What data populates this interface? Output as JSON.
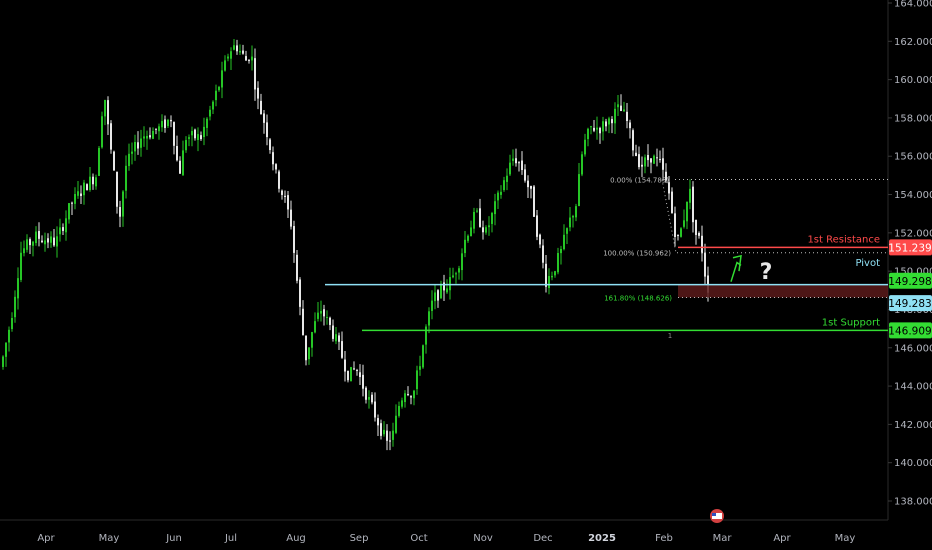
{
  "chart_data": {
    "type": "candlestick",
    "y_axis": {
      "position": "right",
      "range": [
        137,
        164.5
      ],
      "ticks": [
        "138.000",
        "140.000",
        "142.000",
        "144.000",
        "146.000",
        "148.000",
        "150.000",
        "152.000",
        "154.000",
        "156.000",
        "158.000",
        "160.000",
        "162.000",
        "164.000"
      ]
    },
    "x_axis": {
      "ticks": [
        "Apr",
        "May",
        "Jun",
        "Jul",
        "Aug",
        "Sep",
        "Oct",
        "Nov",
        "Dec",
        "2025",
        "Feb",
        "Mar",
        "Apr",
        "May"
      ],
      "bold_tick": "2025"
    },
    "colors": {
      "bull": "#26c626",
      "bear": "#e8e8e8",
      "resistance": "#ff4a4a",
      "pivot": "#8fe1f5",
      "support": "#33dd33",
      "zone": "#5a1a1a",
      "fib_dotted": "#bdbdbd",
      "arrow": "#33dd33",
      "question": "#e8e8e8",
      "axis_text": "#b2b5be"
    },
    "levels": [
      {
        "name": "1st Resistance",
        "value": 151.239,
        "label": "151.239"
      },
      {
        "name": "Pivot",
        "value": 149.298,
        "label": "149.298"
      },
      {
        "name": "",
        "value": 149.283,
        "label": "149.283"
      },
      {
        "name": "1st Support",
        "value": 146.909,
        "label": "146.909"
      }
    ],
    "fib_levels": [
      {
        "label": "0.00% (154.785)",
        "value": 154.785
      },
      {
        "label": "100.00% (150.962)",
        "value": 150.962
      },
      {
        "label": "161.80% (148.626)",
        "value": 148.626
      }
    ],
    "annotations": {
      "question_mark": "?",
      "arrow": "up-arrow",
      "marker_near_support": "1",
      "earnings_icon": "flag-icon"
    },
    "series_path": [
      [
        0,
        145.0
      ],
      [
        10,
        147.5
      ],
      [
        20,
        151.0
      ],
      [
        35,
        151.8
      ],
      [
        55,
        151.5
      ],
      [
        70,
        153.5
      ],
      [
        85,
        154.5
      ],
      [
        95,
        155.0
      ],
      [
        103,
        159.5
      ],
      [
        108,
        157.0
      ],
      [
        112,
        155.5
      ],
      [
        118,
        152.5
      ],
      [
        125,
        155.5
      ],
      [
        140,
        157.0
      ],
      [
        160,
        157.5
      ],
      [
        170,
        158.0
      ],
      [
        178,
        155.0
      ],
      [
        185,
        157.0
      ],
      [
        200,
        157.0
      ],
      [
        210,
        158.5
      ],
      [
        220,
        160.0
      ],
      [
        228,
        161.5
      ],
      [
        235,
        161.8
      ],
      [
        245,
        161.0
      ],
      [
        250,
        161.5
      ],
      [
        256,
        159.0
      ],
      [
        265,
        157.5
      ],
      [
        275,
        155.0
      ],
      [
        285,
        153.5
      ],
      [
        290,
        152.5
      ],
      [
        295,
        150.0
      ],
      [
        300,
        147.5
      ],
      [
        305,
        145.5
      ],
      [
        312,
        147.0
      ],
      [
        320,
        148.0
      ],
      [
        330,
        147.0
      ],
      [
        338,
        146.0
      ],
      [
        348,
        144.5
      ],
      [
        355,
        145.0
      ],
      [
        362,
        144.0
      ],
      [
        370,
        143.0
      ],
      [
        378,
        142.0
      ],
      [
        386,
        141.0
      ],
      [
        392,
        141.5
      ],
      [
        398,
        143.0
      ],
      [
        405,
        144.0
      ],
      [
        412,
        143.5
      ],
      [
        418,
        145.0
      ],
      [
        425,
        147.0
      ],
      [
        432,
        148.5
      ],
      [
        440,
        149.0
      ],
      [
        450,
        149.5
      ],
      [
        458,
        150.5
      ],
      [
        466,
        152.0
      ],
      [
        475,
        153.0
      ],
      [
        485,
        152.0
      ],
      [
        495,
        153.5
      ],
      [
        505,
        155.0
      ],
      [
        513,
        156.0
      ],
      [
        520,
        155.5
      ],
      [
        530,
        154.0
      ],
      [
        538,
        151.5
      ],
      [
        545,
        149.5
      ],
      [
        552,
        150.0
      ],
      [
        560,
        151.0
      ],
      [
        568,
        152.5
      ],
      [
        575,
        153.5
      ],
      [
        582,
        156.5
      ],
      [
        590,
        157.5
      ],
      [
        600,
        157.5
      ],
      [
        610,
        158.0
      ],
      [
        618,
        158.5
      ],
      [
        625,
        158.0
      ],
      [
        632,
        156.5
      ],
      [
        640,
        155.5
      ],
      [
        650,
        156.0
      ],
      [
        660,
        155.5
      ],
      [
        668,
        154.0
      ],
      [
        676,
        151.5
      ],
      [
        682,
        152.5
      ],
      [
        688,
        154.5
      ],
      [
        694,
        152.0
      ],
      [
        700,
        151.5
      ],
      [
        705,
        149.5
      ],
      [
        709,
        148.8
      ]
    ]
  }
}
